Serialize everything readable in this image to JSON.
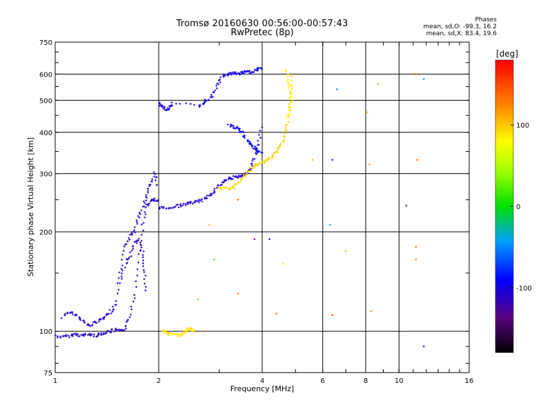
{
  "chart_data": {
    "type": "scatter",
    "title": "Tromsø 20160630 00:56:00-00:57:43",
    "subtitle": "RwPretec (8p)",
    "xlabel": "Frequency [MHz]",
    "ylabel": "Stationary phase Virtual Height [km]",
    "x_scale": "log",
    "y_scale": "log",
    "xlim": [
      1,
      16
    ],
    "ylim": [
      75,
      750
    ],
    "x_ticks": [
      "1",
      "2",
      "4",
      "6",
      "8",
      "10",
      "16"
    ],
    "x_tick_values": [
      1,
      2,
      4,
      6,
      8,
      10,
      16
    ],
    "y_ticks": [
      "750",
      "600",
      "500",
      "400",
      "300",
      "200",
      "100",
      "75"
    ],
    "y_tick_values": [
      750,
      600,
      500,
      400,
      300,
      200,
      100,
      75
    ],
    "x_gridlines": [
      2,
      4,
      6,
      8,
      10
    ],
    "y_gridlines": [
      100,
      200,
      300,
      400,
      500,
      600
    ],
    "grid": true,
    "stats_header": "Phases",
    "stats_lines": [
      "mean, sd,O: -99.3, 16.2",
      "mean, sd,X:  83.4, 19.6"
    ],
    "colorbar": {
      "label": "[deg]",
      "range": [
        -180,
        180
      ],
      "ticks": [
        "100",
        "0",
        "-100"
      ],
      "tick_values": [
        100,
        0,
        -100
      ]
    },
    "series": [
      {
        "traces": [
          {
            "phase": -110,
            "points": [
              [
                1.0,
                97
              ],
              [
                1.05,
                96
              ],
              [
                1.1,
                97
              ],
              [
                1.15,
                98
              ],
              [
                1.2,
                97
              ],
              [
                1.25,
                98
              ],
              [
                1.3,
                97
              ],
              [
                1.35,
                98
              ],
              [
                1.4,
                99
              ],
              [
                1.45,
                100
              ],
              [
                1.5,
                101
              ],
              [
                1.55,
                100
              ],
              [
                1.6,
                102
              ],
              [
                1.65,
                110
              ],
              [
                1.7,
                130
              ],
              [
                1.75,
                170
              ],
              [
                1.8,
                210
              ],
              [
                1.85,
                240
              ],
              [
                1.9,
                248
              ],
              [
                1.95,
                250
              ],
              [
                2.0,
                245
              ]
            ]
          },
          {
            "phase": -108,
            "points": [
              [
                1.05,
                110
              ],
              [
                1.1,
                115
              ],
              [
                1.15,
                112
              ],
              [
                1.2,
                108
              ],
              [
                1.25,
                104
              ],
              [
                1.3,
                106
              ],
              [
                1.35,
                108
              ],
              [
                1.4,
                110
              ],
              [
                1.45,
                115
              ],
              [
                1.5,
                120
              ],
              [
                1.55,
                150
              ],
              [
                1.6,
                180
              ],
              [
                1.65,
                195
              ],
              [
                1.7,
                200
              ],
              [
                1.75,
                220
              ],
              [
                1.8,
                240
              ],
              [
                1.85,
                260
              ],
              [
                1.9,
                280
              ],
              [
                1.95,
                300
              ],
              [
                2.0,
                270
              ]
            ]
          },
          {
            "phase": -112,
            "points": [
              [
                1.55,
                140
              ],
              [
                1.6,
                160
              ],
              [
                1.65,
                170
              ],
              [
                1.7,
                185
              ],
              [
                1.75,
                190
              ],
              [
                1.8,
                170
              ],
              [
                1.82,
                150
              ],
              [
                1.85,
                130
              ]
            ]
          },
          {
            "phase": -105,
            "points": [
              [
                2.0,
                237
              ],
              [
                2.1,
                236
              ],
              [
                2.2,
                238
              ],
              [
                2.3,
                240
              ],
              [
                2.4,
                243
              ],
              [
                2.5,
                245
              ],
              [
                2.6,
                247
              ],
              [
                2.7,
                250
              ],
              [
                2.8,
                257
              ],
              [
                2.9,
                266
              ],
              [
                3.0,
                276
              ],
              [
                3.1,
                285
              ],
              [
                3.2,
                290
              ],
              [
                3.3,
                292
              ],
              [
                3.4,
                293
              ],
              [
                3.5,
                295
              ],
              [
                3.6,
                300
              ],
              [
                3.7,
                312
              ],
              [
                3.8,
                335
              ],
              [
                3.9,
                370
              ],
              [
                4.0,
                420
              ]
            ]
          },
          {
            "phase": -100,
            "points": [
              [
                2.0,
                490
              ],
              [
                2.05,
                480
              ],
              [
                2.1,
                470
              ],
              [
                2.15,
                475
              ],
              [
                2.2,
                490
              ],
              [
                2.6,
                480
              ],
              [
                2.7,
                490
              ],
              [
                2.8,
                505
              ],
              [
                2.9,
                530
              ],
              [
                3.0,
                570
              ],
              [
                3.1,
                595
              ],
              [
                3.2,
                600
              ],
              [
                3.3,
                605
              ],
              [
                3.4,
                600
              ],
              [
                3.5,
                605
              ],
              [
                3.6,
                610
              ],
              [
                3.7,
                608
              ],
              [
                3.8,
                615
              ],
              [
                3.9,
                620
              ],
              [
                4.0,
                625
              ]
            ]
          },
          {
            "phase": -95,
            "points": [
              [
                3.2,
                420
              ],
              [
                3.3,
                415
              ],
              [
                3.4,
                410
              ],
              [
                3.5,
                400
              ],
              [
                3.6,
                380
              ],
              [
                3.7,
                370
              ],
              [
                3.8,
                360
              ],
              [
                3.9,
                350
              ],
              [
                4.0,
                345
              ]
            ]
          },
          {
            "phase": 95,
            "points": [
              [
                3.0,
                272
              ],
              [
                3.1,
                270
              ],
              [
                3.2,
                271
              ],
              [
                3.3,
                272
              ],
              [
                3.4,
                280
              ],
              [
                3.5,
                290
              ],
              [
                3.6,
                300
              ],
              [
                3.7,
                308
              ],
              [
                3.8,
                316
              ],
              [
                3.9,
                320
              ],
              [
                4.0,
                324
              ],
              [
                4.1,
                328
              ],
              [
                4.2,
                333
              ],
              [
                4.3,
                340
              ],
              [
                4.4,
                350
              ],
              [
                4.5,
                362
              ],
              [
                4.6,
                380
              ],
              [
                4.7,
                410
              ],
              [
                4.8,
                460
              ],
              [
                4.85,
                520
              ],
              [
                4.9,
                600
              ]
            ]
          },
          {
            "phase": 90,
            "points": [
              [
                2.05,
                100
              ],
              [
                2.1,
                99
              ],
              [
                2.15,
                98
              ],
              [
                2.2,
                98
              ],
              [
                2.3,
                97
              ],
              [
                2.35,
                99
              ],
              [
                2.4,
                100
              ],
              [
                2.45,
                102
              ],
              [
                2.5,
                101
              ],
              [
                2.55,
                100
              ]
            ]
          },
          {
            "phase": 80,
            "points": [
              [
                4.7,
                620
              ],
              [
                4.75,
                580
              ],
              [
                4.8,
                540
              ],
              [
                4.85,
                500
              ],
              [
                4.8,
                470
              ],
              [
                4.75,
                440
              ]
            ]
          }
        ]
      }
    ],
    "scatter_points": [
      [
        6.4,
        330,
        -120
      ],
      [
        6.6,
        540,
        -60
      ],
      [
        6.3,
        210,
        -40
      ],
      [
        7.0,
        175,
        110
      ],
      [
        8.7,
        560,
        120
      ],
      [
        8.1,
        460,
        110
      ],
      [
        8.2,
        320,
        115
      ],
      [
        8.3,
        115,
        130
      ],
      [
        10.5,
        240,
        -120
      ],
      [
        11.2,
        600,
        140
      ],
      [
        11.3,
        330,
        140
      ],
      [
        11.2,
        180,
        140
      ],
      [
        11.2,
        165,
        130
      ],
      [
        11.8,
        580,
        -40
      ],
      [
        11.8,
        90,
        -120
      ],
      [
        6.4,
        112,
        140
      ],
      [
        5.6,
        330,
        110
      ],
      [
        3.4,
        250,
        140
      ],
      [
        3.4,
        130,
        140
      ],
      [
        3.8,
        190,
        -140
      ],
      [
        4.2,
        190,
        -100
      ],
      [
        2.7,
        100,
        140
      ],
      [
        2.6,
        125,
        30
      ],
      [
        2.8,
        210,
        100
      ],
      [
        2.9,
        165,
        20
      ],
      [
        4.4,
        113,
        140
      ],
      [
        4.6,
        160,
        90
      ]
    ]
  }
}
